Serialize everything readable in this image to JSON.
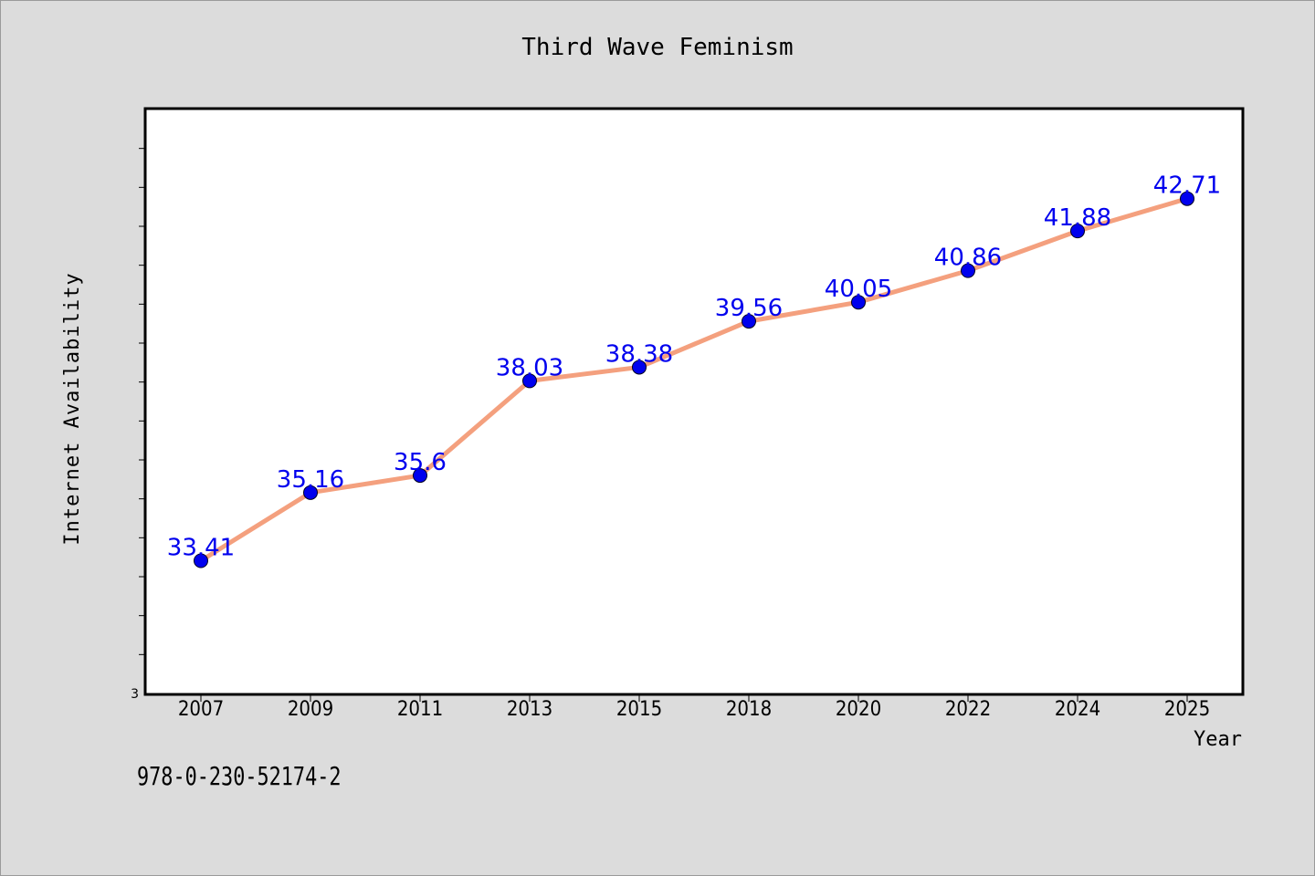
{
  "chart_data": {
    "type": "line",
    "title": "Third Wave Feminism",
    "xlabel": "Year",
    "ylabel": "Internet Availability",
    "categories": [
      "2007",
      "2009",
      "2011",
      "2013",
      "2015",
      "2018",
      "2020",
      "2022",
      "2024",
      "2025"
    ],
    "series": [
      {
        "values": [
          33.41,
          35.16,
          35.6,
          38.03,
          38.38,
          39.56,
          40.05,
          40.86,
          41.88,
          42.71
        ],
        "data_labels": [
          "33.41",
          "35.16",
          "35.6",
          "38.03",
          "38.38",
          "39.56",
          "40.05",
          "40.86",
          "41.88",
          "42.71"
        ]
      }
    ],
    "ylim": [
      30,
      45
    ],
    "y_tick_labels": [
      "3"
    ],
    "grid": false,
    "line_color": "#f4a07e",
    "marker_color": "#0000ee",
    "label_color": "#0000ee"
  },
  "footnote": "978-0-230-52174-2"
}
